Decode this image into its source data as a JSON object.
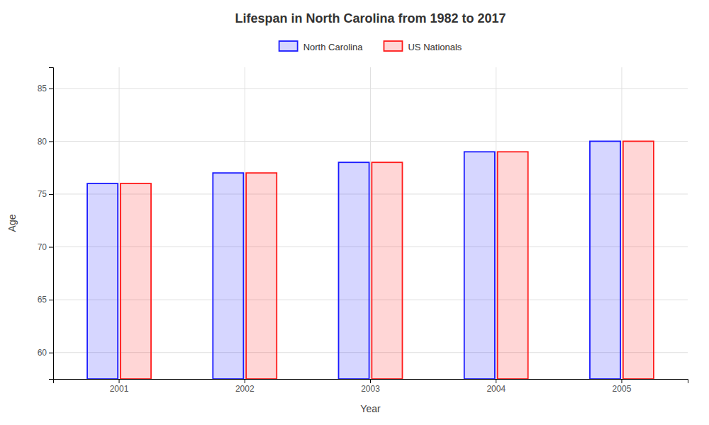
{
  "chart_data": {
    "type": "bar",
    "title": "Lifespan in North Carolina from 1982 to 2017",
    "xlabel": "Year",
    "ylabel": "Age",
    "categories": [
      "2001",
      "2002",
      "2003",
      "2004",
      "2005"
    ],
    "series": [
      {
        "name": "North Carolina",
        "color": "#1a1aff",
        "values": [
          76,
          77,
          78,
          79,
          80
        ]
      },
      {
        "name": "US Nationals",
        "color": "#ff1a1a",
        "values": [
          76,
          77,
          78,
          79,
          80
        ]
      }
    ],
    "ylim": [
      57.5,
      87
    ],
    "yticks": [
      60,
      65,
      70,
      75,
      80,
      85
    ],
    "grid": true,
    "legend": "top"
  }
}
